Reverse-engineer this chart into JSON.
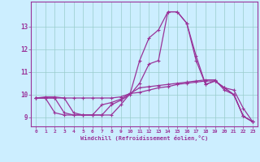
{
  "xlabel": "Windchill (Refroidissement éolien,°C)",
  "bg_color": "#cceeff",
  "grid_color": "#99cccc",
  "line_color": "#993399",
  "xlim": [
    -0.5,
    23.5
  ],
  "ylim": [
    8.6,
    14.1
  ],
  "xticks": [
    0,
    1,
    2,
    3,
    4,
    5,
    6,
    7,
    8,
    9,
    10,
    11,
    12,
    13,
    14,
    15,
    16,
    17,
    18,
    19,
    20,
    21,
    22,
    23
  ],
  "yticks": [
    9,
    10,
    11,
    12,
    13
  ],
  "line1_x": [
    0,
    1,
    2,
    3,
    4,
    5,
    6,
    7,
    8,
    9,
    10,
    11,
    12,
    13,
    14,
    15,
    16,
    17,
    18,
    19,
    20,
    21,
    22,
    23
  ],
  "line1_y": [
    9.85,
    9.9,
    9.9,
    9.85,
    9.85,
    9.85,
    9.85,
    9.85,
    9.85,
    9.9,
    10.05,
    10.1,
    10.2,
    10.3,
    10.35,
    10.45,
    10.5,
    10.55,
    10.6,
    10.6,
    10.3,
    10.2,
    9.4,
    8.8
  ],
  "line2_x": [
    0,
    1,
    2,
    3,
    4,
    5,
    6,
    7,
    8,
    9,
    10,
    11,
    12,
    13,
    14,
    15,
    16,
    17,
    18,
    19,
    20,
    21,
    22,
    23
  ],
  "line2_y": [
    9.85,
    9.85,
    9.85,
    9.85,
    9.2,
    9.1,
    9.1,
    9.1,
    9.1,
    9.55,
    10.05,
    10.3,
    10.35,
    10.4,
    10.45,
    10.5,
    10.55,
    10.6,
    10.65,
    10.65,
    10.2,
    10.0,
    9.05,
    8.8
  ],
  "line3_x": [
    0,
    1,
    2,
    3,
    4,
    5,
    6,
    7,
    8,
    9,
    10,
    11,
    12,
    13,
    14,
    15,
    16,
    17,
    18,
    19,
    20,
    21,
    22,
    23
  ],
  "line3_y": [
    9.85,
    9.85,
    9.85,
    9.2,
    9.1,
    9.1,
    9.1,
    9.1,
    9.55,
    9.75,
    10.0,
    10.5,
    11.35,
    11.5,
    13.65,
    13.65,
    13.15,
    11.7,
    10.45,
    10.6,
    10.3,
    10.0,
    9.05,
    8.8
  ],
  "line4_x": [
    0,
    1,
    2,
    3,
    4,
    5,
    6,
    7,
    8,
    9,
    10,
    11,
    12,
    13,
    14,
    15,
    16,
    17,
    18,
    19,
    20,
    21,
    22,
    23
  ],
  "line4_y": [
    9.85,
    9.85,
    9.2,
    9.1,
    9.1,
    9.1,
    9.1,
    9.55,
    9.65,
    9.8,
    10.05,
    11.5,
    12.5,
    12.85,
    13.65,
    13.65,
    13.15,
    11.5,
    10.45,
    10.6,
    10.3,
    10.0,
    9.05,
    8.8
  ]
}
